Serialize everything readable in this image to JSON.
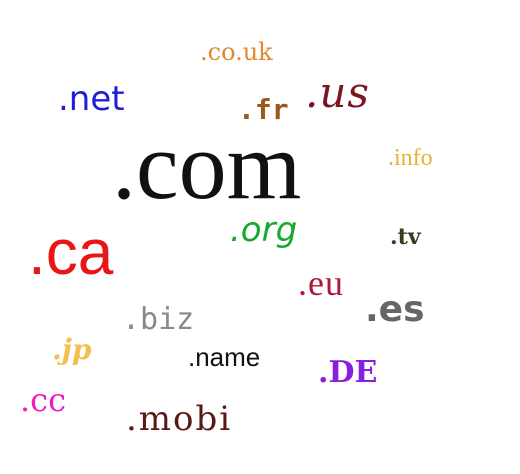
{
  "domains": [
    {
      "key": "couk",
      "text": ".co.uk",
      "color": "#e08a2e"
    },
    {
      "key": "net",
      "text": ".net",
      "color": "#1e1ed8"
    },
    {
      "key": "fr",
      "text": ".fr",
      "color": "#9a5a1c"
    },
    {
      "key": "us",
      "text": ".us",
      "color": "#7a1620"
    },
    {
      "key": "com",
      "text": ".com",
      "color": "#111111"
    },
    {
      "key": "info",
      "text": ".info",
      "color": "#e8b030"
    },
    {
      "key": "org",
      "text": ".org",
      "color": "#17a82e"
    },
    {
      "key": "ca",
      "text": ".ca",
      "color": "#e81616"
    },
    {
      "key": "tv",
      "text": ".tv",
      "color": "#3b3b1c"
    },
    {
      "key": "eu",
      "text": ".eu",
      "color": "#b0183a"
    },
    {
      "key": "es",
      "text": ".es",
      "color": "#666666"
    },
    {
      "key": "biz",
      "text": ".biz",
      "color": "#8a8a8a"
    },
    {
      "key": "jp",
      "text": ".jp",
      "color": "#f2bf52"
    },
    {
      "key": "name",
      "text": ".name",
      "color": "#111111"
    },
    {
      "key": "de",
      "text": ".DE",
      "color": "#8a1ee0"
    },
    {
      "key": "cc",
      "text": ".cc",
      "color": "#f01cc8"
    },
    {
      "key": "mobi",
      "text": ".mobi",
      "color": "#5a1a14"
    }
  ]
}
